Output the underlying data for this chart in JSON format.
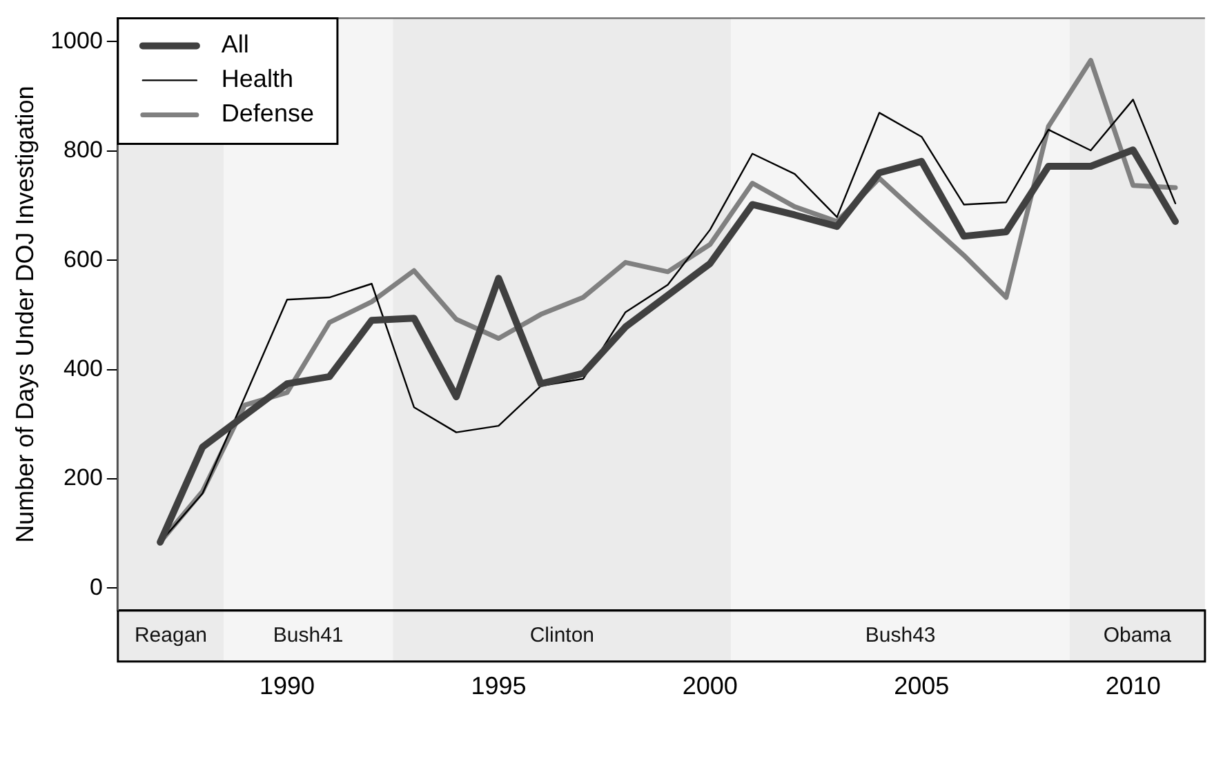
{
  "chart_data": {
    "type": "line",
    "ylabel": "Number of Days Under DOJ Investigation",
    "x": [
      1987,
      1988,
      1989,
      1990,
      1991,
      1992,
      1993,
      1994,
      1995,
      1996,
      1997,
      1998,
      1999,
      2000,
      2001,
      2002,
      2003,
      2004,
      2005,
      2006,
      2007,
      2008,
      2009,
      2010,
      2011
    ],
    "series": [
      {
        "name": "All",
        "color": "#404040",
        "values": [
          84,
          258,
          316,
          374,
          387,
          490,
          494,
          350,
          567,
          374,
          393,
          478,
          536,
          594,
          702,
          683,
          662,
          760,
          781,
          644,
          652,
          772,
          772,
          802,
          671
        ]
      },
      {
        "name": "Health",
        "color": "#000000",
        "values": [
          84,
          173,
          350,
          528,
          532,
          557,
          331,
          285,
          297,
          370,
          383,
          505,
          555,
          656,
          795,
          758,
          679,
          870,
          826,
          702,
          706,
          839,
          801,
          894,
          704
        ]
      },
      {
        "name": "Defense",
        "color": "#808080",
        "values": [
          84,
          177,
          335,
          358,
          486,
          524,
          581,
          492,
          457,
          501,
          532,
          596,
          579,
          629,
          741,
          698,
          671,
          750,
          679,
          609,
          532,
          845,
          966,
          737,
          733
        ]
      }
    ],
    "xlim": [
      1986,
      2011.7
    ],
    "xticks": [
      1990,
      1995,
      2000,
      2005,
      2010
    ],
    "ylim": [
      -41,
      1043
    ],
    "yticks": [
      0,
      200,
      400,
      600,
      800,
      1000
    ],
    "bands": [
      {
        "axis": "x",
        "from": 1986,
        "to": 1988.5,
        "label": "Reagan",
        "color": "#ebebeb"
      },
      {
        "axis": "x",
        "from": 1988.5,
        "to": 1992.5,
        "label": "Bush41",
        "color": "#f5f5f5"
      },
      {
        "axis": "x",
        "from": 1992.5,
        "to": 2000.5,
        "label": "Clinton",
        "color": "#ebebeb"
      },
      {
        "axis": "x",
        "from": 2000.5,
        "to": 2008.5,
        "label": "Bush43",
        "color": "#f5f5f5"
      },
      {
        "axis": "x",
        "from": 2008.5,
        "to": 2011.7,
        "label": "Obama",
        "color": "#ebebeb"
      }
    ],
    "grid": false,
    "legend": "top left",
    "marker": "none",
    "line_style": "solid"
  }
}
